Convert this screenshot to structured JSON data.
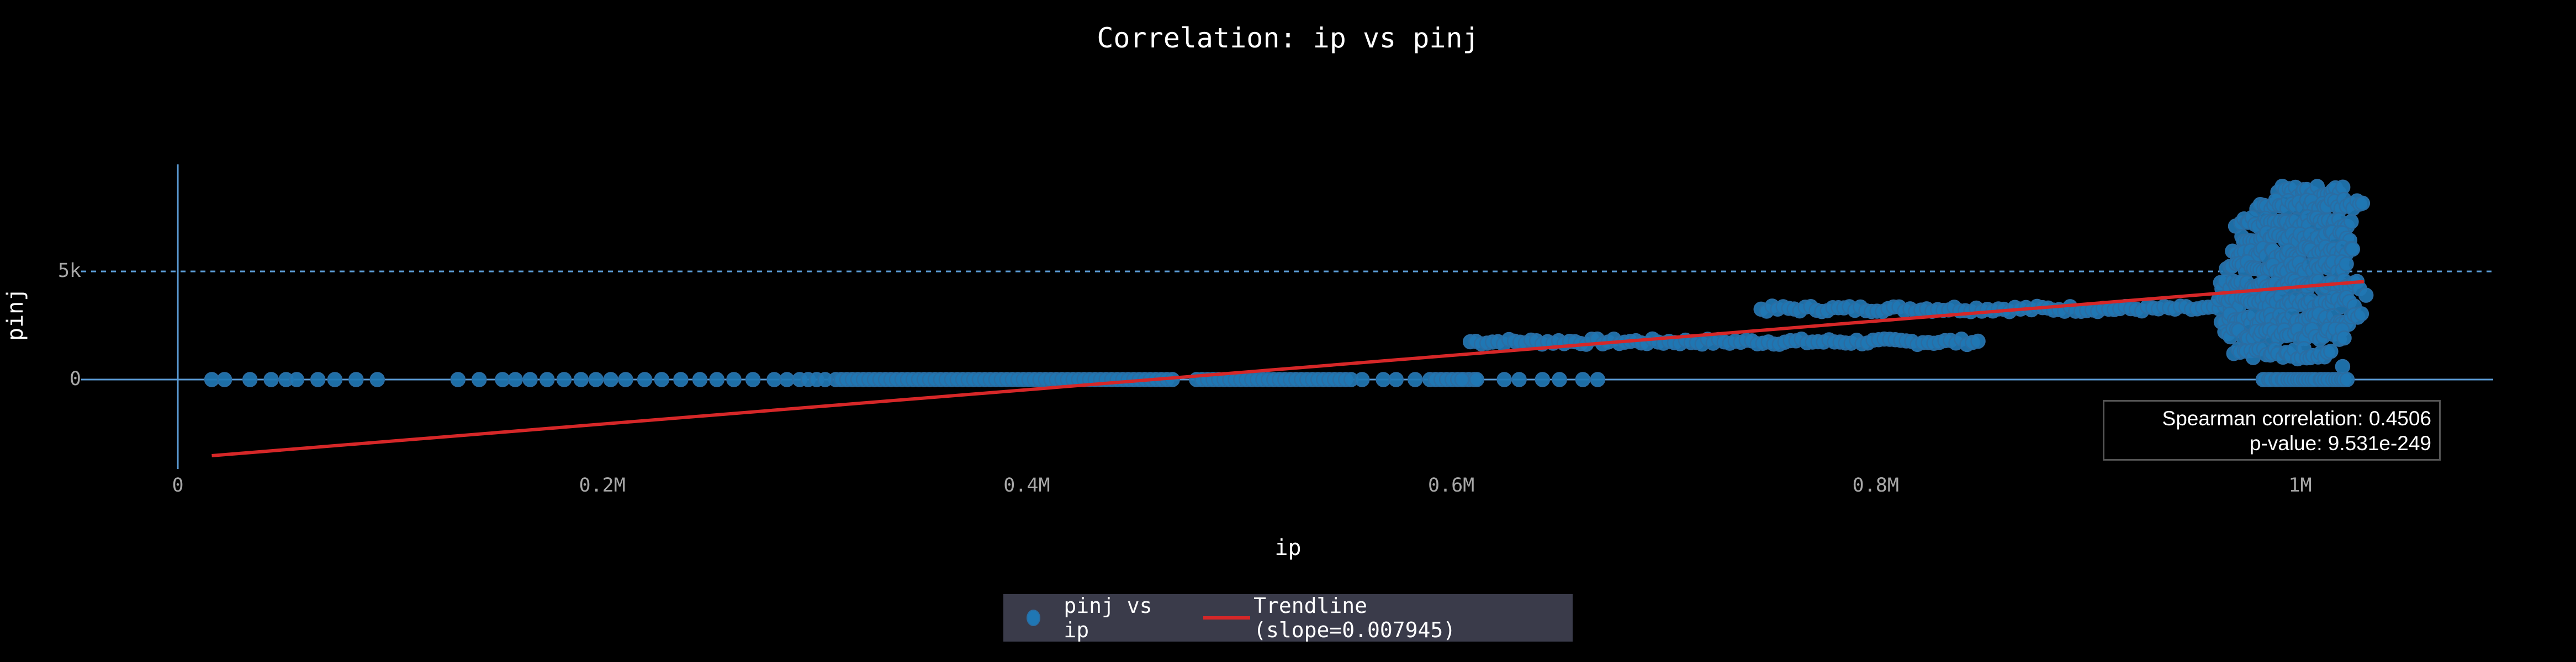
{
  "chart_data": {
    "type": "scatter",
    "title": "Correlation: ip vs pinj",
    "xlabel": "ip",
    "ylabel": "pinj",
    "x_ticks": [
      {
        "value": 0,
        "label": "0"
      },
      {
        "value": 200000,
        "label": "0.2M"
      },
      {
        "value": 400000,
        "label": "0.4M"
      },
      {
        "value": 600000,
        "label": "0.6M"
      },
      {
        "value": 800000,
        "label": "0.8M"
      },
      {
        "value": 1000000,
        "label": "1M"
      }
    ],
    "y_ticks": [
      {
        "value": 0,
        "label": "0"
      },
      {
        "value": 5000,
        "label": "5k"
      }
    ],
    "xlim": [
      -83000,
      1090000
    ],
    "ylim": [
      -4200,
      9900
    ],
    "grid": {
      "x": false,
      "y": true,
      "y_style": "dashed"
    },
    "legend_position": "bottom-center",
    "colors": {
      "scatter": "#1f77b4",
      "scatter_edge": "#2a6da3",
      "trendline": "#d62728",
      "axis": "#5b9bd5",
      "tick_text": "#a8a8a8",
      "legend_bg": "#3a3b4a"
    },
    "series": [
      {
        "name": "pinj vs ip",
        "kind": "scatter",
        "points_sparse": [
          [
            16000,
            0
          ],
          [
            22000,
            0
          ],
          [
            34000,
            0
          ],
          [
            44000,
            0
          ],
          [
            51000,
            0
          ],
          [
            56000,
            0
          ],
          [
            66000,
            0
          ],
          [
            74000,
            0
          ],
          [
            84000,
            0
          ],
          [
            94000,
            0
          ],
          [
            132000,
            0
          ],
          [
            142000,
            0
          ],
          [
            153000,
            0
          ],
          [
            159000,
            0
          ],
          [
            166000,
            0
          ],
          [
            174000,
            0
          ],
          [
            182000,
            0
          ],
          [
            190000,
            0
          ],
          [
            197000,
            0
          ],
          [
            204000,
            0
          ],
          [
            211000,
            0
          ],
          [
            220000,
            0
          ],
          [
            228000,
            0
          ],
          [
            237000,
            0
          ],
          [
            246000,
            0
          ],
          [
            254000,
            0
          ],
          [
            262000,
            0
          ],
          [
            271000,
            0
          ],
          [
            281000,
            0
          ],
          [
            287000,
            0
          ],
          [
            293000,
            0
          ],
          [
            297000,
            0
          ],
          [
            301000,
            0
          ],
          [
            305000,
            0
          ],
          [
            558000,
            0
          ],
          [
            568000,
            0
          ],
          [
            574000,
            0
          ],
          [
            583000,
            0
          ],
          [
            605000,
            0
          ],
          [
            612000,
            0
          ],
          [
            625000,
            0
          ],
          [
            632000,
            0
          ],
          [
            643000,
            0
          ],
          [
            651000,
            0
          ],
          [
            662000,
            0
          ],
          [
            669000,
            0
          ]
        ],
        "dense_bands": [
          {
            "ip_from": 310000,
            "ip_to": 470000,
            "pinj": 0
          },
          {
            "ip_from": 480000,
            "ip_to": 555000,
            "pinj": 0
          },
          {
            "ip_from": 590000,
            "ip_to": 612000,
            "pinj": 0
          },
          {
            "ip_from": 609000,
            "ip_to": 850000,
            "pinj": 1750
          },
          {
            "ip_from": 746000,
            "ip_to": 970000,
            "pinj": 3270
          }
        ],
        "cluster_rows": [
          {
            "ip_from": 990000,
            "ip_to": 1020000,
            "pinj": 8700
          },
          {
            "ip_from": 980000,
            "ip_to": 1030000,
            "pinj": 8100
          },
          {
            "ip_from": 970000,
            "ip_to": 1025000,
            "pinj": 7300
          },
          {
            "ip_from": 972000,
            "ip_to": 1023000,
            "pinj": 6600
          },
          {
            "ip_from": 968000,
            "ip_to": 1025000,
            "pinj": 5900
          },
          {
            "ip_from": 965000,
            "ip_to": 1022000,
            "pinj": 5200
          },
          {
            "ip_from": 962000,
            "ip_to": 1027000,
            "pinj": 4400
          },
          {
            "ip_from": 962000,
            "ip_to": 1025000,
            "pinj": 3600
          },
          {
            "ip_from": 963000,
            "ip_to": 1030000,
            "pinj": 2800
          },
          {
            "ip_from": 964000,
            "ip_to": 1022000,
            "pinj": 2100
          },
          {
            "ip_from": 969000,
            "ip_to": 1015000,
            "pinj": 1200
          },
          {
            "ip_from": 982000,
            "ip_to": 1023000,
            "pinj": 0
          }
        ],
        "cluster_outliers": [
          [
            1028000,
            4200
          ],
          [
            1031000,
            3900
          ],
          [
            1020000,
            600
          ]
        ]
      },
      {
        "name": "Trendline (slope=0.007945)",
        "kind": "line",
        "slope": 0.007945,
        "x": [
          16000,
          1030000
        ],
        "y": [
          -3520,
          4530
        ]
      }
    ],
    "annotation": {
      "spearman_label": "Spearman correlation: 0.4506",
      "pvalue_label": "p-value: 9.531e-249",
      "spearman": 0.4506,
      "p_value": "9.531e-249"
    }
  },
  "legend": {
    "scatter_label": "pinj vs ip",
    "trend_label": "Trendline (slope=0.007945)"
  }
}
